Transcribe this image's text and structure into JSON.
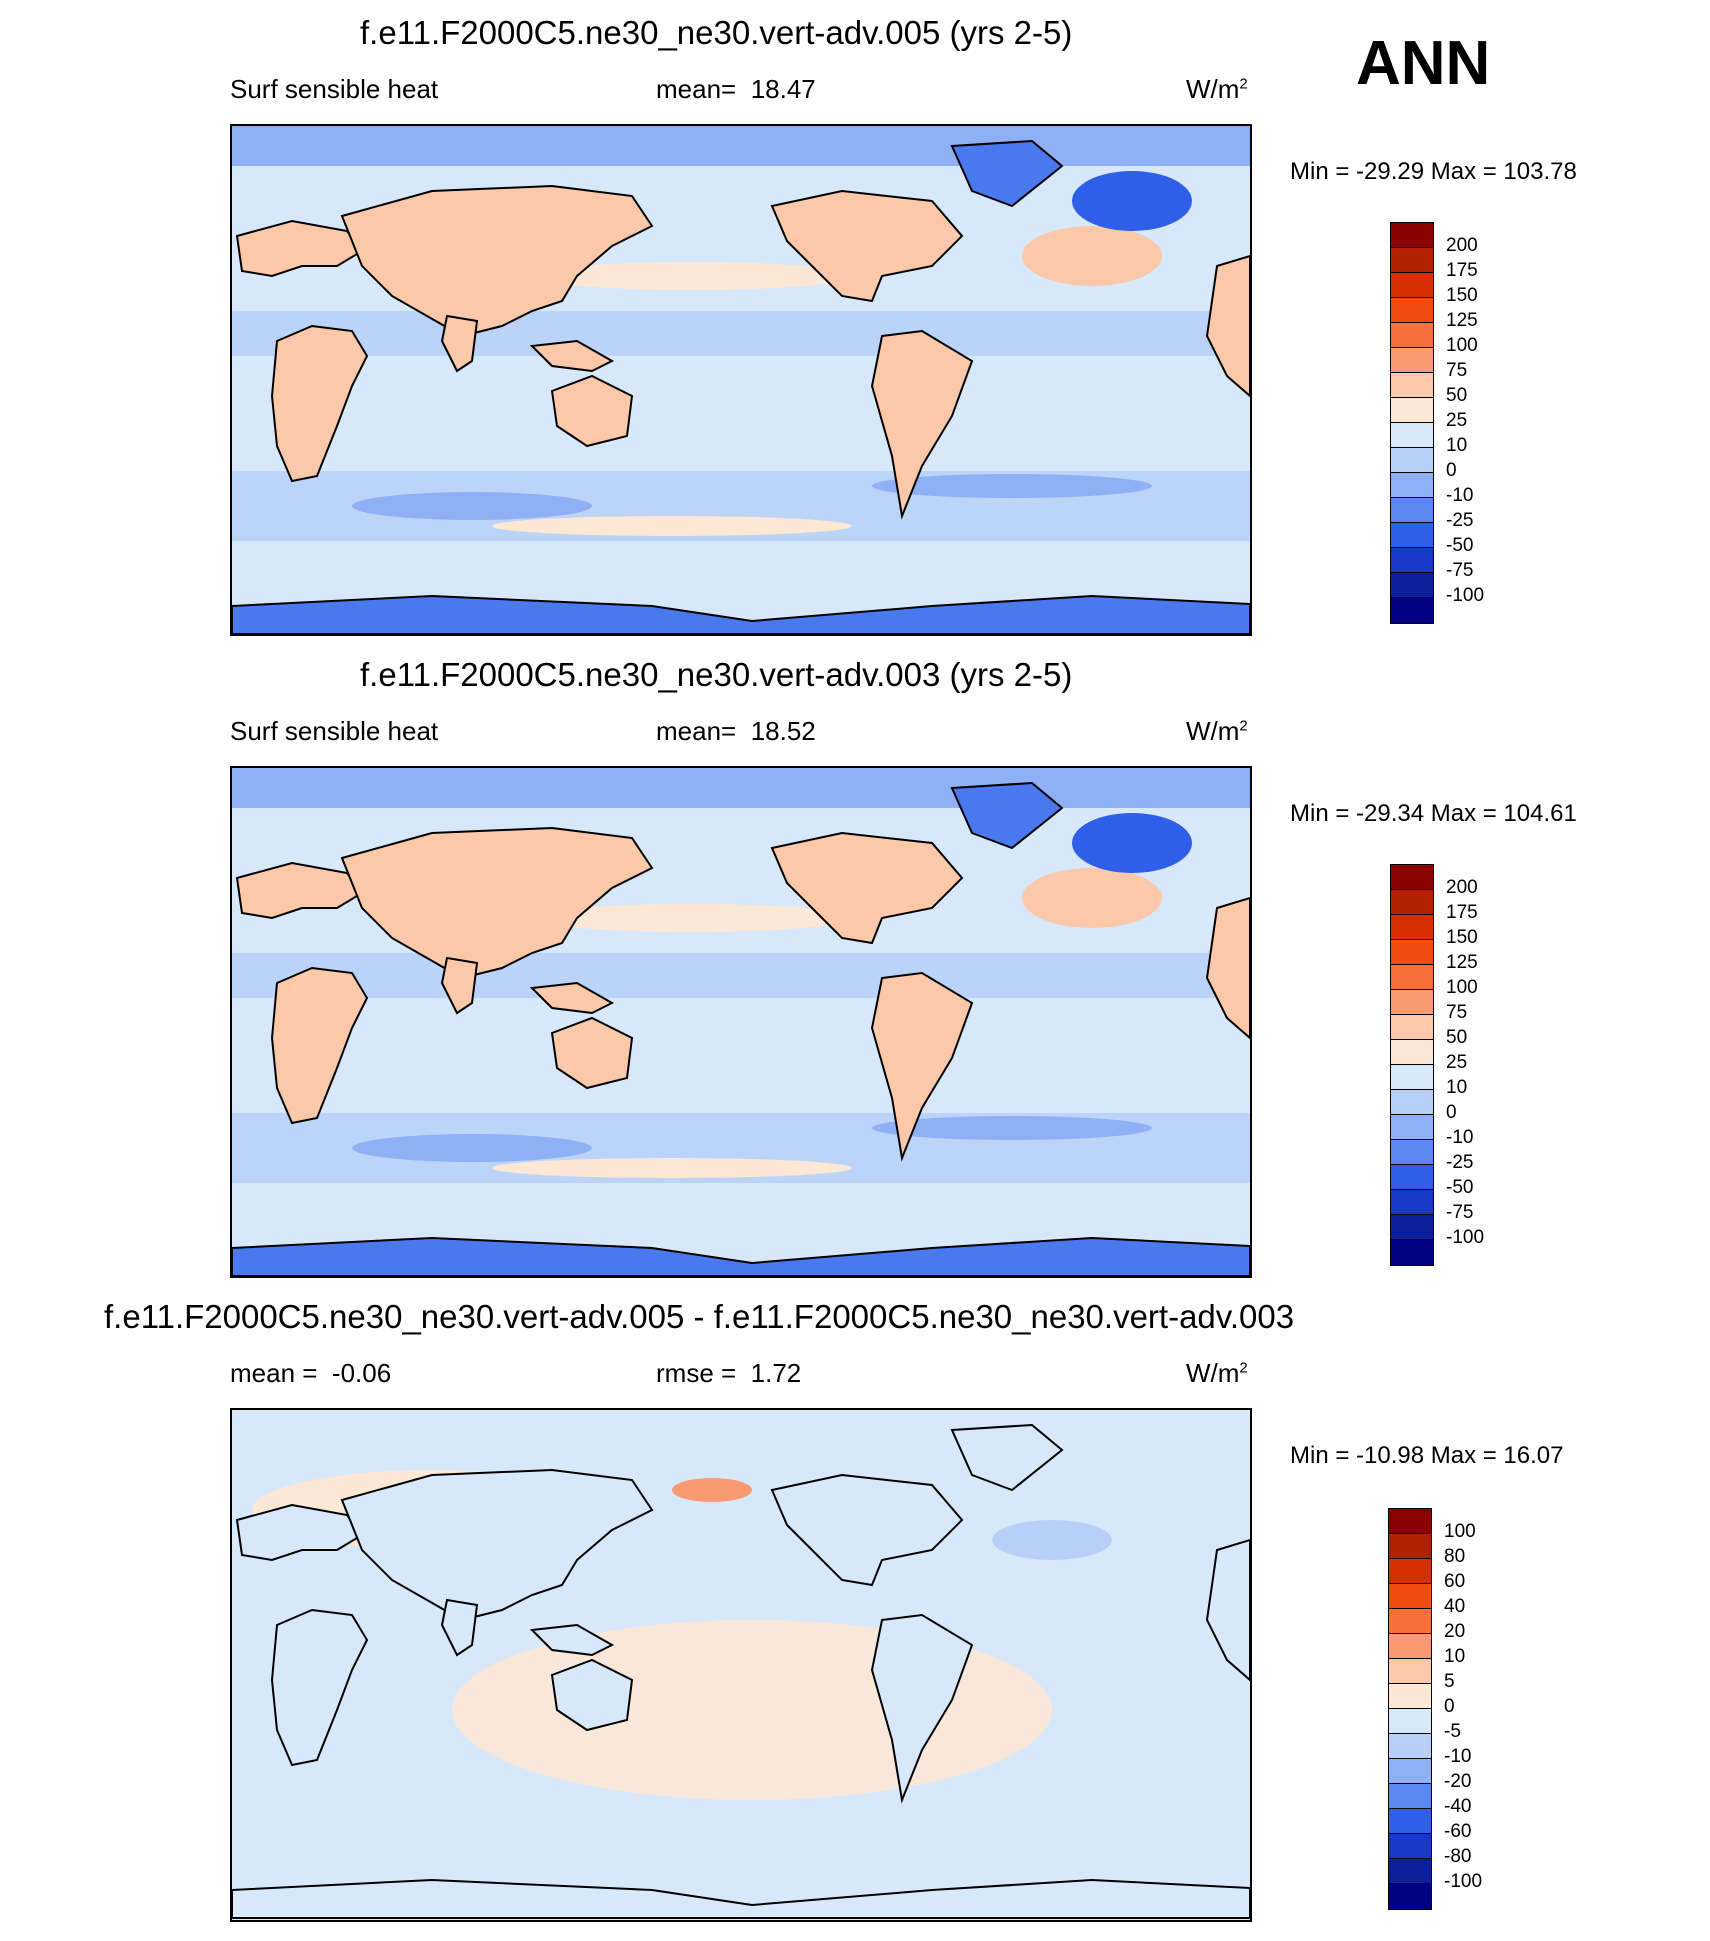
{
  "season": "ANN",
  "top": {
    "title": "f.e11.F2000C5.ne30_ne30.vert-adv.005 (yrs 2-5)",
    "left_label": "Surf sensible heat",
    "stat_label": "mean=",
    "stat_value": "18.47",
    "units": "W/m",
    "units_sup": "2",
    "min_max": "Min = -29.29 Max = 103.78",
    "levels": [
      "200",
      "175",
      "150",
      "125",
      "100",
      "75",
      "50",
      "25",
      "10",
      "0",
      "-10",
      "-25",
      "-50",
      "-75",
      "-100"
    ]
  },
  "middle": {
    "title": "f.e11.F2000C5.ne30_ne30.vert-adv.003 (yrs 2-5)",
    "left_label": "Surf sensible heat",
    "stat_label": "mean=",
    "stat_value": "18.52",
    "units": "W/m",
    "units_sup": "2",
    "min_max": "Min = -29.34 Max = 104.61",
    "levels": [
      "200",
      "175",
      "150",
      "125",
      "100",
      "75",
      "50",
      "25",
      "10",
      "0",
      "-10",
      "-25",
      "-50",
      "-75",
      "-100"
    ]
  },
  "bottom": {
    "title": "f.e11.F2000C5.ne30_ne30.vert-adv.005 - f.e11.F2000C5.ne30_ne30.vert-adv.003",
    "mean_label": "mean =",
    "mean_value": "-0.06",
    "rmse_label": "rmse =",
    "rmse_value": "1.72",
    "units": "W/m",
    "units_sup": "2",
    "min_max": "Min = -10.98 Max =  16.07",
    "levels": [
      "100",
      "80",
      "60",
      "40",
      "20",
      "10",
      "5",
      "0",
      "-5",
      "-10",
      "-20",
      "-40",
      "-60",
      "-80",
      "-100"
    ]
  },
  "colors": {
    "palette": [
      "#8b0000",
      "#b22000",
      "#d63000",
      "#f04c10",
      "#f5703a",
      "#f99a72",
      "#fcc8aa",
      "#fde8d6",
      "#d8e8fb",
      "#b8d0f8",
      "#8fb0f5",
      "#5b88f0",
      "#2f5ee8",
      "#1838c8",
      "#0c1e9a",
      "#000080"
    ],
    "ocean_base": "#d8e8fb",
    "antarctic": "#4a78ee",
    "diff_base": "#d8e8fb"
  }
}
